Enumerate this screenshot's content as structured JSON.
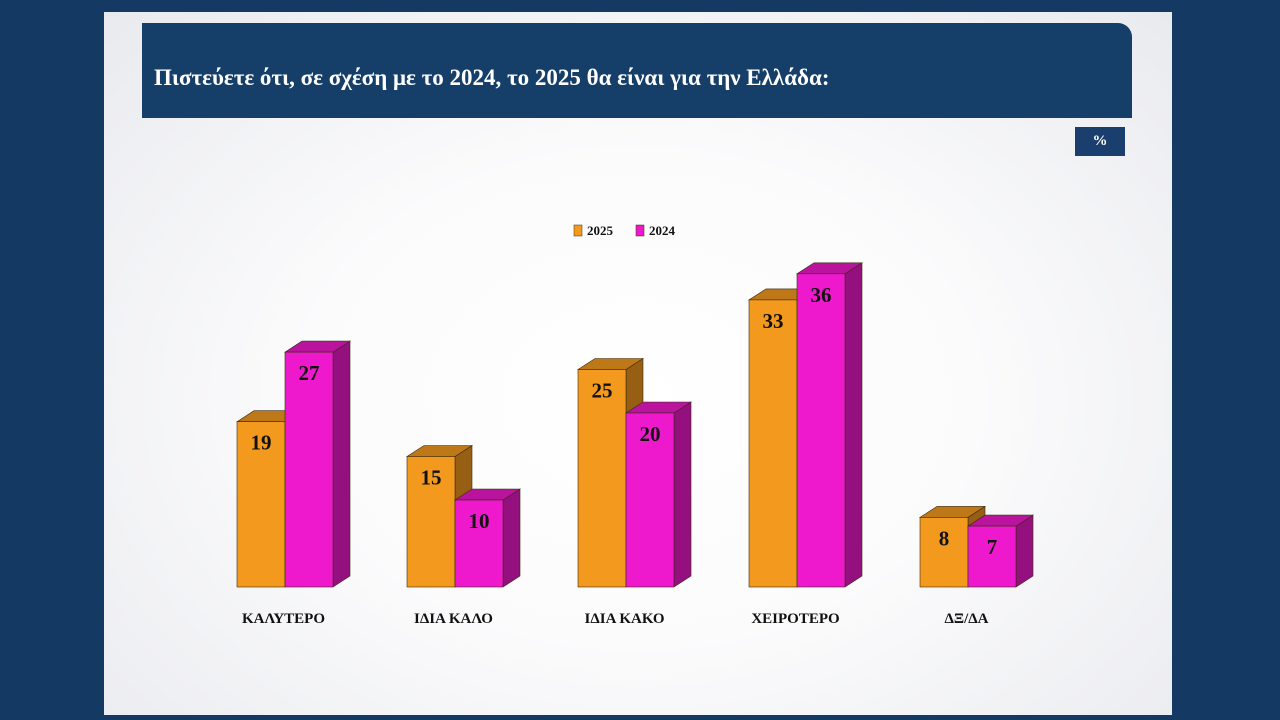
{
  "title": "Πιστεύετε ότι, σε σχέση με το 2024, το 2025 θα είναι για την Ελλάδα:",
  "unit": "%",
  "colors": {
    "background": "#143a63",
    "title_bar": "#153e68",
    "series_2025": "#f39a1e",
    "series_2024": "#ee19cc"
  },
  "chart_data": {
    "type": "bar",
    "style": "3d-clustered",
    "legend_position": "top-center",
    "grid": false,
    "categories": [
      "ΚΑΛΥΤΕΡΟ",
      "ΙΔΙΑ ΚΑΛΟ",
      "ΙΔΙΑ ΚΑΚΟ",
      "ΧΕΙΡΟΤΕΡΟ",
      "ΔΞ/ΔΑ"
    ],
    "series": [
      {
        "name": "2025",
        "values": [
          19,
          15,
          25,
          33,
          8
        ]
      },
      {
        "name": "2024",
        "values": [
          27,
          10,
          20,
          36,
          7
        ]
      }
    ]
  }
}
